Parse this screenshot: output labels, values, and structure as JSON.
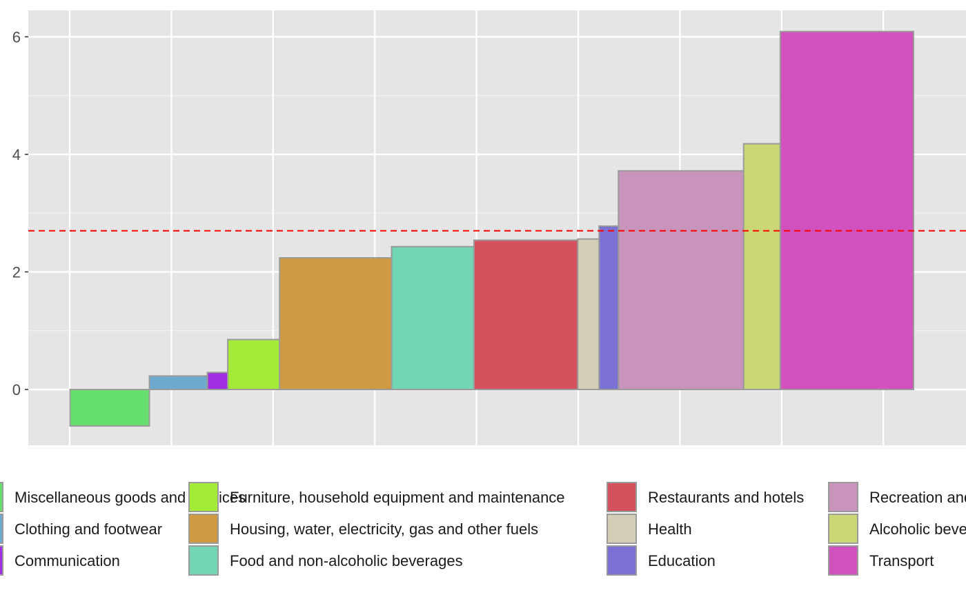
{
  "chart_data": {
    "type": "bar",
    "variant": "variable-width bars",
    "x_axis_tick_labels_shown": false,
    "ylim": [
      -0.95,
      6.45
    ],
    "y_ticks": [
      0,
      2,
      4,
      6
    ],
    "y_tick_labels": [
      "0",
      "2",
      "4",
      "6"
    ],
    "reference_line": {
      "value": 2.7,
      "style": "dashed",
      "color": "#ff0000"
    },
    "grid": true,
    "legend_position": "bottom",
    "series": [
      {
        "name": "Miscellaneous goods and services",
        "value": -0.62,
        "weight": 0.78,
        "color": "#66DE6E"
      },
      {
        "name": "Clothing and footwear",
        "value": 0.23,
        "weight": 0.57,
        "color": "#6EAACE"
      },
      {
        "name": "Communication",
        "value": 0.29,
        "weight": 0.2,
        "color": "#A02DE4"
      },
      {
        "name": "Furniture, household equipment and maintenance",
        "value": 0.85,
        "weight": 0.51,
        "color": "#A3EB36"
      },
      {
        "name": "Housing, water, electricity, gas and other fuels",
        "value": 2.24,
        "weight": 1.1,
        "color": "#D09A42"
      },
      {
        "name": "Food and non-alcoholic beverages",
        "value": 2.43,
        "weight": 0.81,
        "color": "#72D6B6"
      },
      {
        "name": "Restaurants and hotels",
        "value": 2.54,
        "weight": 1.02,
        "color": "#D4525D"
      },
      {
        "name": "Health",
        "value": 2.56,
        "weight": 0.21,
        "color": "#D5CEB6"
      },
      {
        "name": "Education",
        "value": 2.78,
        "weight": 0.19,
        "color": "#7B70D4"
      },
      {
        "name": "Recreation and culture",
        "value": 3.72,
        "weight": 1.23,
        "color": "#C994BC"
      },
      {
        "name": "Alcoholic beverages, tobacco and narcotics",
        "value": 4.18,
        "weight": 0.36,
        "color": "#CBD774"
      },
      {
        "name": "Transport",
        "value": 6.09,
        "weight": 1.31,
        "color": "#D151BD"
      }
    ]
  }
}
